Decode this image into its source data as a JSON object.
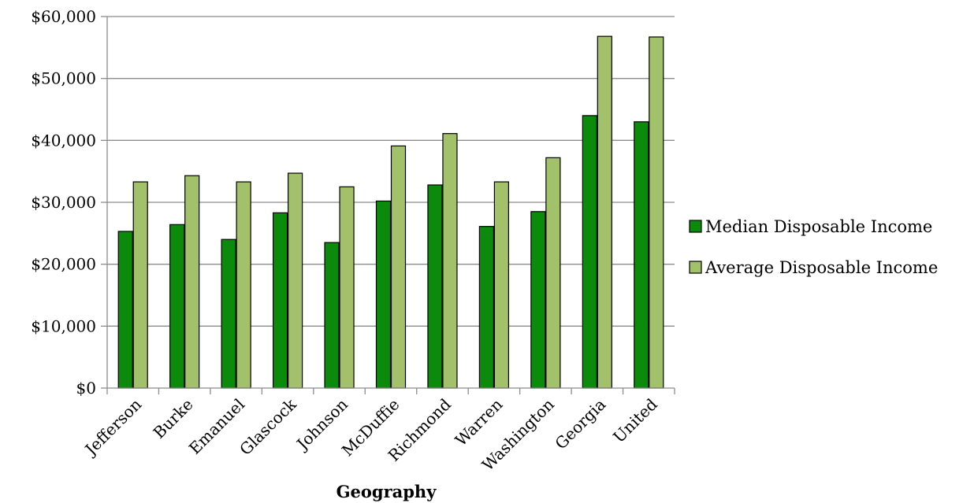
{
  "chart_data": {
    "type": "bar",
    "title": "",
    "xlabel": "Geography",
    "ylabel": "",
    "ylim": [
      0,
      60000
    ],
    "yticks": [
      0,
      10000,
      20000,
      30000,
      40000,
      50000,
      60000
    ],
    "ytick_labels": [
      "$0",
      "$10,000",
      "$20,000",
      "$30,000",
      "$40,000",
      "$50,000",
      "$60,000"
    ],
    "grid": true,
    "legend_position": "right",
    "categories": [
      "Jefferson",
      "Burke",
      "Emanuel",
      "Glascock",
      "Johnson",
      "McDuffie",
      "Richmond",
      "Warren",
      "Washington",
      "Georgia",
      "United"
    ],
    "series": [
      {
        "name": "Median Disposable Income",
        "color": "#0b8a0b",
        "values": [
          25300,
          26400,
          24000,
          28300,
          23500,
          30200,
          32800,
          26100,
          28500,
          44000,
          43000
        ]
      },
      {
        "name": "Average Disposable Income",
        "color": "#a3c16a",
        "values": [
          33300,
          34300,
          33300,
          34700,
          32500,
          39100,
          41100,
          33300,
          37200,
          56800,
          56700
        ]
      }
    ]
  }
}
